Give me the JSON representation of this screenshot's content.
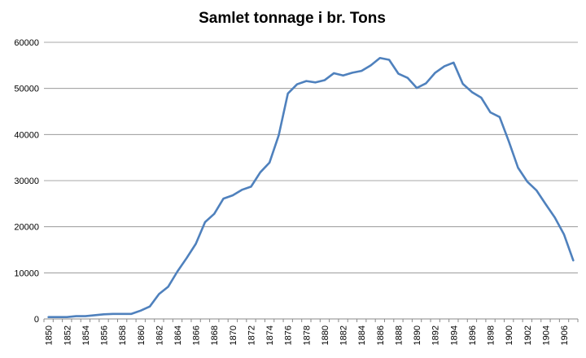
{
  "chart_data": {
    "type": "line",
    "title": "Samlet tonnage i br. Tons",
    "xlabel": "",
    "ylabel": "",
    "ylim": [
      0,
      60000
    ],
    "yticks": [
      0,
      10000,
      20000,
      30000,
      40000,
      50000,
      60000
    ],
    "grid": true,
    "legend": "none",
    "x": [
      1850,
      1851,
      1852,
      1853,
      1854,
      1855,
      1856,
      1857,
      1858,
      1859,
      1860,
      1861,
      1862,
      1863,
      1864,
      1865,
      1866,
      1867,
      1868,
      1869,
      1870,
      1871,
      1872,
      1873,
      1874,
      1875,
      1876,
      1877,
      1878,
      1879,
      1880,
      1881,
      1882,
      1883,
      1884,
      1885,
      1886,
      1887,
      1888,
      1889,
      1890,
      1891,
      1892,
      1893,
      1894,
      1895,
      1896,
      1897,
      1898,
      1899,
      1900,
      1901,
      1902,
      1903,
      1904,
      1905,
      1906,
      1907
    ],
    "x_tick_labels": [
      1850,
      1852,
      1854,
      1856,
      1858,
      1860,
      1862,
      1864,
      1866,
      1868,
      1870,
      1872,
      1874,
      1876,
      1878,
      1880,
      1882,
      1884,
      1886,
      1888,
      1890,
      1892,
      1894,
      1896,
      1898,
      1900,
      1902,
      1904,
      1906
    ],
    "series": [
      {
        "color": "#4f81bd",
        "values": [
          400,
          400,
          400,
          600,
          600,
          800,
          1000,
          1100,
          1100,
          1100,
          1800,
          2700,
          5400,
          7000,
          10300,
          13200,
          16300,
          21000,
          22800,
          26100,
          26800,
          28000,
          28700,
          31800,
          33900,
          39800,
          48900,
          50900,
          51600,
          51300,
          51800,
          53300,
          52800,
          53400,
          53800,
          55000,
          56600,
          56200,
          53200,
          52300,
          50100,
          51100,
          53400,
          54800,
          55600,
          51000,
          49200,
          48000,
          44800,
          43800,
          38500,
          32800,
          29800,
          27900,
          24900,
          22000,
          18300,
          12700
        ]
      }
    ]
  }
}
